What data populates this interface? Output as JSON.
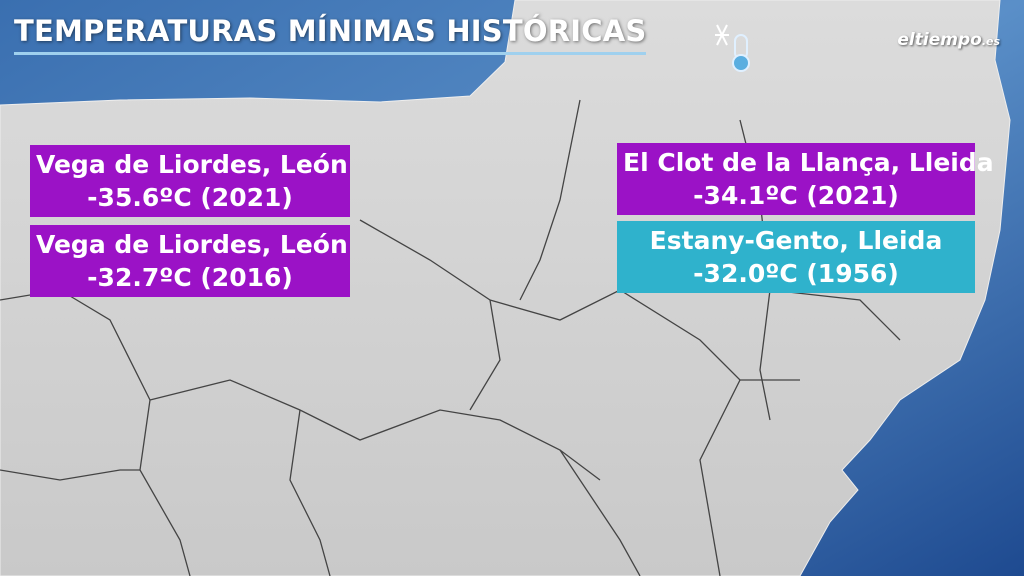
{
  "header": {
    "title": "TEMPERATURAS MÍNIMAS HISTÓRICAS",
    "logo": {
      "name": "eltiempo",
      "suffix": ".es"
    }
  },
  "labels": [
    {
      "place": "Vega de Liordes, León",
      "reading": "-35.6ºC (2021)",
      "color": "#9b12c6"
    },
    {
      "place": "Vega de Liordes, León",
      "reading": "-32.7ºC (2016)",
      "color": "#9b12c6"
    },
    {
      "place": "El Clot de la Llança, Lleida",
      "reading": "-34.1ºC (2021)",
      "color": "#9b12c6"
    },
    {
      "place": "Estany-Gento, Lleida",
      "reading": "-32.0ºC (1956)",
      "color": "#2fb2cc"
    }
  ]
}
